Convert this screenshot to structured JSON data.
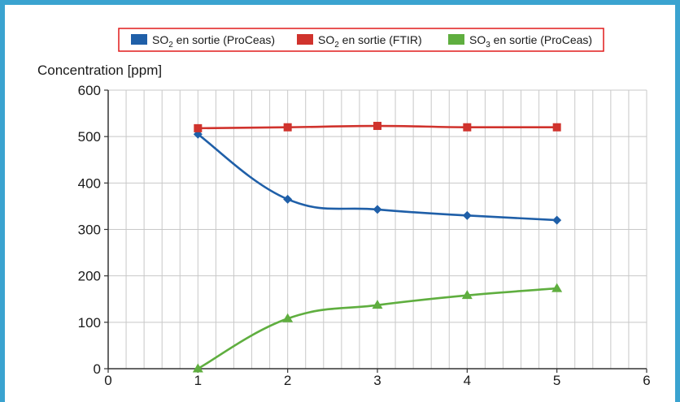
{
  "colors": {
    "frame": "#3aa3d0",
    "legend_border": "#e01b1b",
    "grid": "#c8c8c8"
  },
  "chart_data": {
    "type": "line",
    "ylabel": "Concentration [ppm]",
    "xlim": [
      0,
      6
    ],
    "ylim": [
      0,
      600
    ],
    "x_ticks": [
      "0",
      "1",
      "2",
      "3",
      "4",
      "5",
      "6"
    ],
    "y_ticks": [
      "0",
      "100",
      "200",
      "300",
      "400",
      "500",
      "600"
    ],
    "grid": true,
    "legend_position": "top-center",
    "series": [
      {
        "legend": {
          "pre": "SO",
          "sub": "2",
          "post": " en sortie (ProCeas)"
        },
        "color": "#1f5fa8",
        "marker": "diamond",
        "x": [
          1,
          2,
          3,
          4,
          5
        ],
        "y": [
          505,
          365,
          343,
          330,
          320
        ]
      },
      {
        "legend": {
          "pre": "SO",
          "sub": "2",
          "post": " en sortie (FTIR)"
        },
        "color": "#d0332d",
        "marker": "square",
        "x": [
          1,
          2,
          3,
          4,
          5
        ],
        "y": [
          518,
          520,
          523,
          520,
          520
        ]
      },
      {
        "legend": {
          "pre": "SO",
          "sub": "3",
          "post": " en sortie (ProCeas)"
        },
        "color": "#5fae3f",
        "marker": "triangle",
        "x": [
          1,
          2,
          3,
          4,
          5
        ],
        "y": [
          0,
          108,
          137,
          158,
          173
        ]
      }
    ]
  }
}
